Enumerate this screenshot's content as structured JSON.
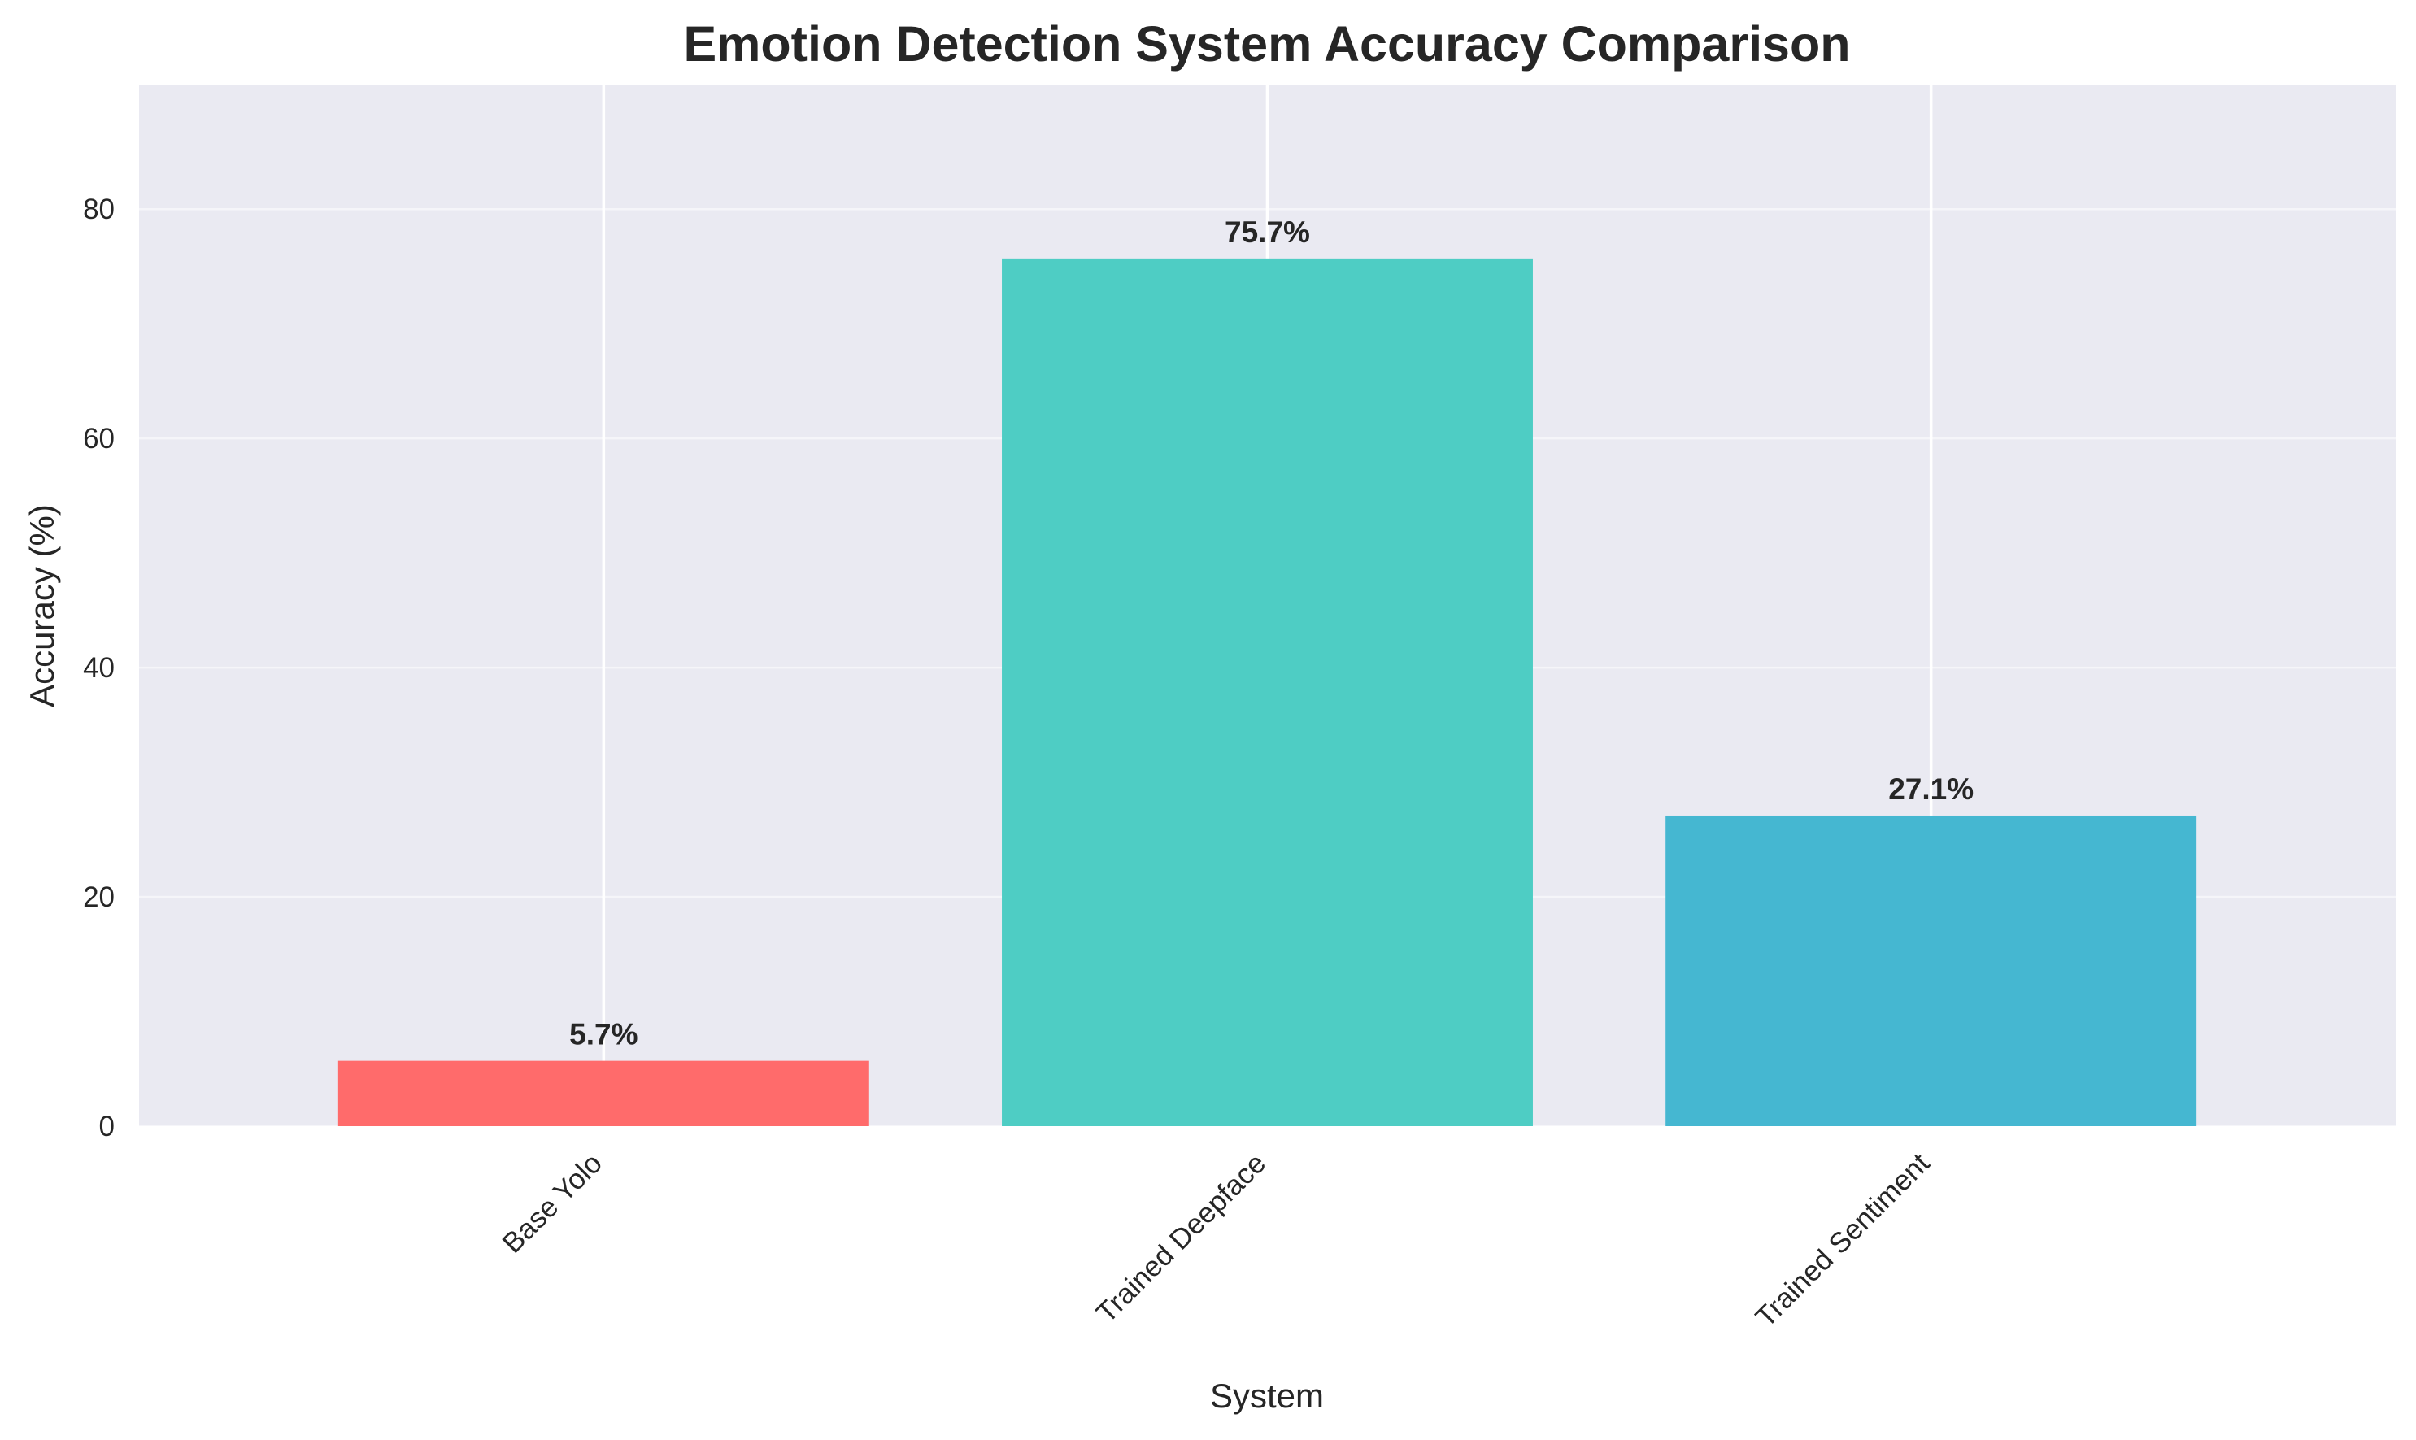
{
  "chart_data": {
    "type": "bar",
    "title": "Emotion Detection System Accuracy Comparison",
    "xlabel": "System",
    "ylabel": "Accuracy (%)",
    "categories": [
      "Base Yolo",
      "Trained Deepface",
      "Trained Sentiment"
    ],
    "values": [
      5.7,
      75.7,
      27.1
    ],
    "value_labels": [
      "5.7%",
      "75.7%",
      "27.1%"
    ],
    "colors": [
      "#FF6B6B",
      "#4ECDC4",
      "#45B7D1"
    ],
    "ylim": [
      0,
      90.8
    ],
    "yticks": [
      0,
      20,
      40,
      60,
      80
    ],
    "ytick_labels": [
      "0",
      "20",
      "40",
      "60",
      "80"
    ],
    "grid": true,
    "background": "#EAEAF2"
  }
}
